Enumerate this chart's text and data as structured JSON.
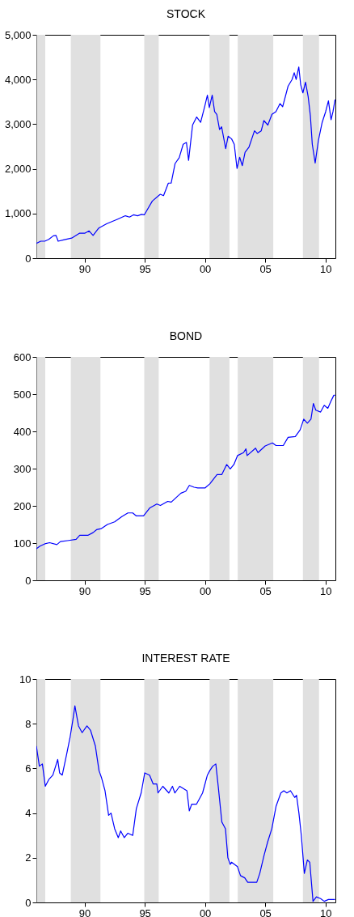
{
  "chart_data": [
    {
      "type": "line",
      "title": "STOCK",
      "xlim": [
        1986,
        2010.83
      ],
      "xticks": [
        {
          "value": 1990,
          "label": "90"
        },
        {
          "value": 1995,
          "label": "95"
        },
        {
          "value": 2000,
          "label": "00"
        },
        {
          "value": 2005,
          "label": "05"
        },
        {
          "value": 2010,
          "label": "10"
        }
      ],
      "ylim": [
        0,
        5000
      ],
      "yticks": [
        {
          "value": 0,
          "label": "0"
        },
        {
          "value": 1000,
          "label": "1,000"
        },
        {
          "value": 2000,
          "label": "2,000"
        },
        {
          "value": 3000,
          "label": "3,000"
        },
        {
          "value": 4000,
          "label": "4,000"
        },
        {
          "value": 5000,
          "label": "5,000"
        }
      ],
      "bands": [
        {
          "axis": "x",
          "from": 1986.03,
          "to": 1986.74,
          "color": "#e0e0e0"
        },
        {
          "axis": "x",
          "from": 1988.86,
          "to": 1991.32,
          "color": "#e0e0e0"
        },
        {
          "axis": "x",
          "from": 1994.96,
          "to": 1996.16,
          "color": "#e0e0e0"
        },
        {
          "axis": "x",
          "from": 2000.38,
          "to": 2002.03,
          "color": "#e0e0e0"
        },
        {
          "axis": "x",
          "from": 2002.72,
          "to": 2005.67,
          "color": "#e0e0e0"
        },
        {
          "axis": "x",
          "from": 2008.13,
          "to": 2009.47,
          "color": "#e0e0e0"
        }
      ],
      "series": [
        {
          "color": "#0000ff",
          "x": [
            1986.0,
            1986.36,
            1986.7,
            1987.03,
            1987.41,
            1987.63,
            1987.81,
            1988.26,
            1988.93,
            1989.6,
            1990.04,
            1990.38,
            1990.71,
            1991.16,
            1991.83,
            1992.72,
            1993.39,
            1993.73,
            1994.06,
            1994.4,
            1994.73,
            1994.96,
            1995.63,
            1996.29,
            1996.56,
            1996.96,
            1997.19,
            1997.52,
            1997.86,
            1998.19,
            1998.46,
            1998.64,
            1998.97,
            1999.31,
            1999.64,
            1999.98,
            2000.2,
            2000.36,
            2000.6,
            2000.8,
            2000.98,
            2001.21,
            2001.38,
            2001.72,
            2001.92,
            2002.21,
            2002.43,
            2002.66,
            2002.88,
            2003.1,
            2003.33,
            2003.66,
            2004.11,
            2004.33,
            2004.67,
            2004.89,
            2005.22,
            2005.56,
            2005.89,
            2006.23,
            2006.45,
            2006.9,
            2007.23,
            2007.41,
            2007.57,
            2007.79,
            2007.95,
            2008.13,
            2008.35,
            2008.57,
            2008.75,
            2008.91,
            2009.15,
            2009.42,
            2009.73,
            2010.02,
            2010.25,
            2010.47,
            2010.63,
            2010.8
          ],
          "values": [
            330,
            380,
            380,
            420,
            500,
            510,
            380,
            410,
            450,
            560,
            560,
            610,
            510,
            670,
            770,
            870,
            950,
            920,
            970,
            950,
            980,
            970,
            1280,
            1430,
            1400,
            1680,
            1680,
            2120,
            2250,
            2550,
            2590,
            2190,
            2980,
            3160,
            3040,
            3400,
            3650,
            3370,
            3650,
            3280,
            3220,
            2880,
            2940,
            2450,
            2730,
            2670,
            2550,
            2010,
            2260,
            2070,
            2370,
            2490,
            2850,
            2790,
            2850,
            3080,
            2980,
            3220,
            3280,
            3460,
            3390,
            3850,
            4000,
            4150,
            4000,
            4280,
            3880,
            3700,
            3940,
            3610,
            3190,
            2550,
            2130,
            2640,
            3040,
            3280,
            3520,
            3100,
            3280,
            3550
          ]
        }
      ]
    },
    {
      "type": "line",
      "title": "BOND",
      "xlim": [
        1986,
        2010.83
      ],
      "xticks": [
        {
          "value": 1990,
          "label": "90"
        },
        {
          "value": 1995,
          "label": "95"
        },
        {
          "value": 2000,
          "label": "00"
        },
        {
          "value": 2005,
          "label": "05"
        },
        {
          "value": 2010,
          "label": "10"
        }
      ],
      "ylim": [
        0,
        600
      ],
      "yticks": [
        0,
        100,
        200,
        300,
        400,
        500,
        600
      ],
      "bands": [
        {
          "axis": "x",
          "from": 1986.03,
          "to": 1986.74,
          "color": "#e0e0e0"
        },
        {
          "axis": "x",
          "from": 1988.86,
          "to": 1991.32,
          "color": "#e0e0e0"
        },
        {
          "axis": "x",
          "from": 1994.96,
          "to": 1996.16,
          "color": "#e0e0e0"
        },
        {
          "axis": "x",
          "from": 2000.38,
          "to": 2002.03,
          "color": "#e0e0e0"
        },
        {
          "axis": "x",
          "from": 2002.72,
          "to": 2005.67,
          "color": "#e0e0e0"
        },
        {
          "axis": "x",
          "from": 2008.13,
          "to": 2009.47,
          "color": "#e0e0e0"
        }
      ],
      "series": [
        {
          "color": "#0000ff",
          "x": [
            1986.0,
            1986.3,
            1986.7,
            1987.1,
            1987.7,
            1988.0,
            1988.7,
            1989.3,
            1989.6,
            1990.3,
            1990.7,
            1991.0,
            1991.4,
            1991.9,
            1992.5,
            1993.1,
            1993.6,
            1994.0,
            1994.3,
            1994.9,
            1995.4,
            1996.0,
            1996.3,
            1996.9,
            1997.2,
            1998.0,
            1998.4,
            1998.7,
            1999.1,
            1999.4,
            2000.0,
            2000.4,
            2001.0,
            2001.4,
            2001.8,
            2002.1,
            2002.4,
            2002.7,
            2003.2,
            2003.4,
            2003.5,
            2004.2,
            2004.4,
            2005.0,
            2005.6,
            2005.9,
            2006.5,
            2006.9,
            2007.5,
            2007.9,
            2008.2,
            2008.5,
            2008.8,
            2009.0,
            2009.2,
            2009.6,
            2009.9,
            2010.2,
            2010.5,
            2010.7,
            2010.8
          ],
          "values": [
            85,
            92,
            98,
            101,
            96,
            104,
            107,
            110,
            121,
            121,
            128,
            136,
            139,
            150,
            157,
            171,
            181,
            181,
            173,
            173,
            194,
            205,
            201,
            212,
            210,
            234,
            239,
            255,
            250,
            248,
            248,
            259,
            284,
            284,
            311,
            299,
            311,
            335,
            343,
            353,
            335,
            355,
            343,
            361,
            369,
            362,
            362,
            384,
            386,
            404,
            433,
            422,
            433,
            475,
            457,
            452,
            470,
            462,
            484,
            497,
            497
          ]
        }
      ]
    },
    {
      "type": "line",
      "title": "INTEREST RATE",
      "xlim": [
        1986,
        2010.83
      ],
      "xticks": [
        {
          "value": 1990,
          "label": "90"
        },
        {
          "value": 1995,
          "label": "95"
        },
        {
          "value": 2000,
          "label": "00"
        },
        {
          "value": 2005,
          "label": "05"
        },
        {
          "value": 2010,
          "label": "10"
        }
      ],
      "ylim": [
        0,
        10
      ],
      "yticks": [
        0,
        2,
        4,
        6,
        8,
        10
      ],
      "bands": [
        {
          "axis": "x",
          "from": 1986.03,
          "to": 1986.74,
          "color": "#e0e0e0"
        },
        {
          "axis": "x",
          "from": 1988.86,
          "to": 1991.32,
          "color": "#e0e0e0"
        },
        {
          "axis": "x",
          "from": 1994.96,
          "to": 1996.16,
          "color": "#e0e0e0"
        },
        {
          "axis": "x",
          "from": 2000.38,
          "to": 2002.03,
          "color": "#e0e0e0"
        },
        {
          "axis": "x",
          "from": 2002.72,
          "to": 2005.67,
          "color": "#e0e0e0"
        },
        {
          "axis": "x",
          "from": 2008.13,
          "to": 2009.47,
          "color": "#e0e0e0"
        }
      ],
      "series": [
        {
          "color": "#0000ff",
          "x": [
            1986.0,
            1986.25,
            1986.5,
            1986.74,
            1987.03,
            1987.37,
            1987.6,
            1987.77,
            1987.93,
            1988.15,
            1988.5,
            1988.8,
            1989.04,
            1989.2,
            1989.5,
            1989.8,
            1990.2,
            1990.5,
            1990.9,
            1991.2,
            1991.4,
            1991.7,
            1992.0,
            1992.2,
            1992.5,
            1992.8,
            1993.0,
            1993.3,
            1993.6,
            1994.0,
            1994.3,
            1994.7,
            1995.0,
            1995.4,
            1995.7,
            1996.0,
            1996.1,
            1996.5,
            1997.0,
            1997.3,
            1997.5,
            1997.9,
            1998.5,
            1998.7,
            1998.9,
            1999.3,
            1999.8,
            2000.2,
            2000.4,
            2000.65,
            2000.9,
            2001.1,
            2001.4,
            2001.7,
            2001.9,
            2002.1,
            2002.2,
            2002.7,
            2002.95,
            2003.3,
            2003.55,
            2003.9,
            2004.3,
            2004.55,
            2004.9,
            2005.2,
            2005.55,
            2005.9,
            2006.3,
            2006.55,
            2006.8,
            2007.1,
            2007.45,
            2007.6,
            2007.8,
            2008.0,
            2008.25,
            2008.5,
            2008.7,
            2008.97,
            2009.25,
            2009.6,
            2009.9,
            2010.25,
            2010.8
          ],
          "values": [
            7.0,
            6.1,
            6.2,
            5.2,
            5.5,
            5.7,
            6.1,
            6.4,
            5.8,
            5.7,
            6.6,
            7.4,
            8.2,
            8.8,
            7.9,
            7.6,
            7.9,
            7.7,
            7.0,
            5.9,
            5.6,
            5.0,
            3.9,
            4.0,
            3.3,
            2.9,
            3.2,
            2.9,
            3.1,
            3.0,
            4.2,
            4.9,
            5.8,
            5.7,
            5.3,
            5.3,
            4.9,
            5.2,
            4.9,
            5.2,
            4.9,
            5.2,
            5.0,
            4.1,
            4.4,
            4.4,
            4.9,
            5.7,
            5.9,
            6.1,
            6.2,
            5.2,
            3.6,
            3.3,
            2.0,
            1.7,
            1.8,
            1.6,
            1.2,
            1.1,
            0.9,
            0.9,
            0.9,
            1.3,
            2.1,
            2.7,
            3.3,
            4.3,
            4.9,
            5.0,
            4.9,
            5.0,
            4.7,
            4.8,
            4.0,
            3.0,
            1.3,
            1.9,
            1.8,
            0.05,
            0.25,
            0.17,
            0.05,
            0.13,
            0.13
          ]
        }
      ]
    }
  ]
}
